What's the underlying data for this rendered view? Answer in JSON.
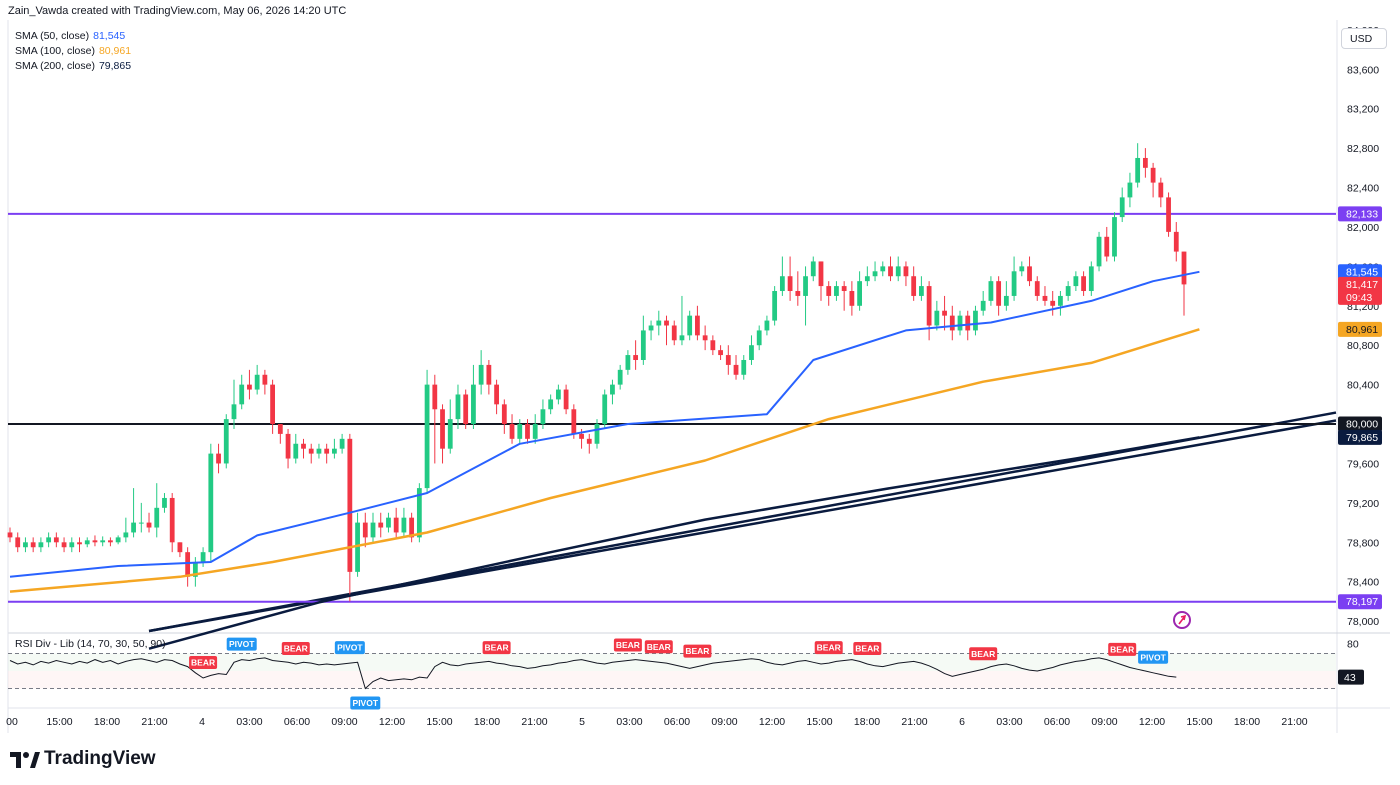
{
  "header": {
    "created": "Zain_Vawda created with TradingView.com, May 06, 2026 14:20 UTC"
  },
  "legend": [
    {
      "label": "SMA (50, close)",
      "value": "81,545",
      "color": "#2962ff"
    },
    {
      "label": "SMA (100, close)",
      "value": "80,961",
      "color": "#f5a623"
    },
    {
      "label": "SMA (200, close)",
      "value": "79,865",
      "color": "#0a1b3f"
    }
  ],
  "currency": "USD",
  "rsi_title": "RSI Div - Lib (14, 70, 30, 50, 90)",
  "rsi_value": "43",
  "rsi_levels": [
    "80"
  ],
  "logo": "TradingView",
  "colors": {
    "up": "#089981",
    "up_body": "#22ca84",
    "down": "#f23645",
    "sma50": "#2962ff",
    "sma100": "#f5a623",
    "sma200": "#0a1b3f",
    "level_line": "#7b3ff2",
    "bear": "#f23645",
    "pivot": "#2196f3"
  },
  "chart_data": {
    "type": "candlestick",
    "ylim": [
      77900,
      84100
    ],
    "y_ticks": [
      "78,000",
      "78,400",
      "78,800",
      "79,200",
      "79,600",
      "80,000",
      "80,400",
      "80,800",
      "81,200",
      "81,600",
      "82,000",
      "82,400",
      "82,800",
      "83,200",
      "83,600",
      "84,000"
    ],
    "y_tick_values": [
      78000,
      78400,
      78800,
      79200,
      79600,
      80000,
      80400,
      80800,
      81200,
      81600,
      82000,
      82400,
      82800,
      83200,
      83600,
      84000
    ],
    "x_ticks": [
      "00",
      "15:00",
      "18:00",
      "21:00",
      "4",
      "03:00",
      "06:00",
      "09:00",
      "12:00",
      "15:00",
      "18:00",
      "21:00",
      "5",
      "03:00",
      "06:00",
      "09:00",
      "12:00",
      "15:00",
      "18:00",
      "21:00",
      "6",
      "03:00",
      "06:00",
      "09:00",
      "12:00",
      "15:00",
      "18:00",
      "21:00"
    ],
    "price_tags": [
      {
        "label": "82,133",
        "value": 82133,
        "bg": "#7b3ff2",
        "fg": "#ffffff"
      },
      {
        "label": "81,545",
        "value": 81545,
        "bg": "#2962ff",
        "fg": "#ffffff"
      },
      {
        "label": "81,417",
        "sub": "09:43",
        "value": 81417,
        "bg": "#f23645",
        "fg": "#ffffff"
      },
      {
        "label": "80,961",
        "value": 80961,
        "bg": "#f5a623",
        "fg": "#131722"
      },
      {
        "label": "80,000",
        "value": 80000,
        "bg": "#131722",
        "fg": "#ffffff"
      },
      {
        "label": "79,865",
        "value": 79865,
        "bg": "#0a1b3f",
        "fg": "#ffffff"
      },
      {
        "label": "78,197",
        "value": 78197,
        "bg": "#7b3ff2",
        "fg": "#ffffff"
      }
    ],
    "horizontal_levels": [
      {
        "value": 82133,
        "color": "#7b3ff2"
      },
      {
        "value": 80000,
        "color": "#131722"
      },
      {
        "value": 78197,
        "color": "#7b3ff2"
      }
    ],
    "trendlines": [
      {
        "from": [
          18,
          77700
        ],
        "to": [
          166,
          79950
        ],
        "color": "#0a1b3f"
      },
      {
        "from": [
          18,
          77780
        ],
        "to": [
          166,
          80030
        ],
        "color": "#0a1b3f"
      }
    ],
    "candles": [
      [
        78900,
        78850,
        78800,
        78950
      ],
      [
        78850,
        78750,
        78700,
        78900
      ],
      [
        78750,
        78800,
        78700,
        78850
      ],
      [
        78800,
        78750,
        78700,
        78850
      ],
      [
        78750,
        78800,
        78700,
        78850
      ],
      [
        78800,
        78850,
        78750,
        78900
      ],
      [
        78850,
        78800,
        78750,
        78900
      ],
      [
        78800,
        78750,
        78700,
        78850
      ],
      [
        78750,
        78800,
        78700,
        78850
      ],
      [
        78800,
        78780,
        78700,
        78850
      ],
      [
        78780,
        78820,
        78750,
        78850
      ],
      [
        78820,
        78800,
        78760,
        78870
      ],
      [
        78800,
        78820,
        78760,
        78860
      ],
      [
        78820,
        78800,
        78760,
        78850
      ],
      [
        78800,
        78850,
        78780,
        78870
      ],
      [
        78850,
        78900,
        78800,
        79050
      ],
      [
        78900,
        79000,
        78850,
        79350
      ],
      [
        79000,
        79000,
        78900,
        79200
      ],
      [
        79000,
        78950,
        78900,
        79100
      ],
      [
        78950,
        79150,
        78850,
        79400
      ],
      [
        79150,
        79250,
        79100,
        79300
      ],
      [
        79250,
        78800,
        78700,
        79300
      ],
      [
        78800,
        78700,
        78650,
        78800
      ],
      [
        78700,
        78450,
        78350,
        78750
      ],
      [
        78450,
        78600,
        78350,
        78650
      ],
      [
        78600,
        78700,
        78550,
        78750
      ],
      [
        78700,
        79700,
        78600,
        79800
      ],
      [
        79700,
        79600,
        79500,
        79800
      ],
      [
        79600,
        80050,
        79550,
        80100
      ],
      [
        80050,
        80200,
        79950,
        80450
      ],
      [
        80200,
        80400,
        80150,
        80500
      ],
      [
        80400,
        80350,
        80250,
        80550
      ],
      [
        80350,
        80500,
        80300,
        80600
      ],
      [
        80500,
        80400,
        80300,
        80550
      ],
      [
        80400,
        80000,
        79900,
        80450
      ],
      [
        80000,
        79900,
        79800,
        80000
      ],
      [
        79900,
        79650,
        79550,
        79950
      ],
      [
        79650,
        79800,
        79600,
        79900
      ],
      [
        79800,
        79750,
        79650,
        79850
      ],
      [
        79750,
        79700,
        79600,
        79800
      ],
      [
        79700,
        79750,
        79650,
        79800
      ],
      [
        79750,
        79700,
        79600,
        79800
      ],
      [
        79700,
        79750,
        79650,
        79850
      ],
      [
        79750,
        79850,
        79700,
        79900
      ],
      [
        79850,
        78500,
        78200,
        79900
      ],
      [
        78500,
        79000,
        78450,
        79100
      ],
      [
        79000,
        78850,
        78750,
        79100
      ],
      [
        78850,
        79000,
        78800,
        79100
      ],
      [
        79000,
        78950,
        78850,
        79100
      ],
      [
        78950,
        79050,
        78900,
        79100
      ],
      [
        79050,
        78900,
        78850,
        79150
      ],
      [
        78900,
        79050,
        78850,
        79150
      ],
      [
        79050,
        78850,
        78800,
        79100
      ],
      [
        78850,
        79350,
        78800,
        79400
      ],
      [
        79350,
        80400,
        79300,
        80550
      ],
      [
        80400,
        80150,
        79600,
        80500
      ],
      [
        80150,
        79750,
        79600,
        80200
      ],
      [
        79750,
        80050,
        79700,
        80250
      ],
      [
        80050,
        80300,
        79950,
        80400
      ],
      [
        80300,
        80000,
        79950,
        80350
      ],
      [
        80000,
        80400,
        79950,
        80600
      ],
      [
        80400,
        80600,
        80300,
        80750
      ],
      [
        80600,
        80400,
        80300,
        80650
      ],
      [
        80400,
        80200,
        80100,
        80450
      ],
      [
        80200,
        80000,
        79900,
        80250
      ],
      [
        80000,
        79850,
        79800,
        80100
      ],
      [
        79850,
        80000,
        79800,
        80050
      ],
      [
        80000,
        79850,
        79800,
        80050
      ],
      [
        79850,
        80000,
        79800,
        80100
      ],
      [
        80000,
        80150,
        79950,
        80250
      ],
      [
        80150,
        80250,
        80100,
        80300
      ],
      [
        80250,
        80350,
        80200,
        80400
      ],
      [
        80350,
        80150,
        80100,
        80400
      ],
      [
        80150,
        79900,
        79850,
        80200
      ],
      [
        79900,
        79850,
        79750,
        79950
      ],
      [
        79850,
        79800,
        79700,
        79900
      ],
      [
        79800,
        80000,
        79750,
        80050
      ],
      [
        80000,
        80300,
        79950,
        80350
      ],
      [
        80300,
        80400,
        80200,
        80450
      ],
      [
        80400,
        80550,
        80350,
        80600
      ],
      [
        80550,
        80700,
        80500,
        80750
      ],
      [
        80700,
        80650,
        80550,
        80850
      ],
      [
        80650,
        80950,
        80600,
        81100
      ],
      [
        80950,
        81000,
        80850,
        81050
      ],
      [
        81000,
        81050,
        80900,
        81150
      ],
      [
        81050,
        81000,
        80800,
        81100
      ],
      [
        81000,
        80850,
        80800,
        81050
      ],
      [
        80850,
        80900,
        80800,
        81300
      ],
      [
        80900,
        81100,
        80850,
        81150
      ],
      [
        81100,
        80900,
        80850,
        81200
      ],
      [
        80900,
        80850,
        80750,
        81000
      ],
      [
        80850,
        80750,
        80700,
        80900
      ],
      [
        80750,
        80700,
        80650,
        80800
      ],
      [
        80700,
        80600,
        80500,
        80800
      ],
      [
        80600,
        80500,
        80450,
        80700
      ],
      [
        80500,
        80650,
        80450,
        80700
      ],
      [
        80650,
        80800,
        80600,
        80900
      ],
      [
        80800,
        80950,
        80750,
        81000
      ],
      [
        80950,
        81050,
        80900,
        81100
      ],
      [
        81050,
        81350,
        81000,
        81400
      ],
      [
        81350,
        81500,
        81300,
        81700
      ],
      [
        81500,
        81350,
        81250,
        81700
      ],
      [
        81350,
        81300,
        81200,
        81550
      ],
      [
        81300,
        81500,
        81000,
        81600
      ],
      [
        81500,
        81650,
        81450,
        81700
      ],
      [
        81650,
        81400,
        81250,
        81650
      ],
      [
        81400,
        81300,
        81200,
        81450
      ],
      [
        81300,
        81400,
        81250,
        81450
      ],
      [
        81400,
        81350,
        81150,
        81450
      ],
      [
        81350,
        81200,
        81100,
        81450
      ],
      [
        81200,
        81450,
        81150,
        81550
      ],
      [
        81450,
        81500,
        81400,
        81600
      ],
      [
        81500,
        81550,
        81450,
        81650
      ],
      [
        81550,
        81600,
        81500,
        81650
      ],
      [
        81600,
        81500,
        81450,
        81700
      ],
      [
        81500,
        81600,
        81450,
        81700
      ],
      [
        81600,
        81500,
        81400,
        81650
      ],
      [
        81500,
        81300,
        81250,
        81600
      ],
      [
        81300,
        81400,
        81250,
        81500
      ],
      [
        81400,
        81000,
        80850,
        81450
      ],
      [
        81000,
        81150,
        80950,
        81250
      ],
      [
        81150,
        81100,
        80950,
        81300
      ],
      [
        81100,
        80950,
        80850,
        81200
      ],
      [
        80950,
        81100,
        80900,
        81150
      ],
      [
        81100,
        80950,
        80850,
        81150
      ],
      [
        80950,
        81150,
        80900,
        81200
      ],
      [
        81150,
        81250,
        81100,
        81350
      ],
      [
        81250,
        81450,
        81200,
        81500
      ],
      [
        81450,
        81200,
        81100,
        81500
      ],
      [
        81200,
        81300,
        81150,
        81450
      ],
      [
        81300,
        81550,
        81250,
        81700
      ],
      [
        81550,
        81600,
        81500,
        81650
      ],
      [
        81600,
        81450,
        81400,
        81700
      ],
      [
        81450,
        81300,
        81250,
        81500
      ],
      [
        81300,
        81250,
        81200,
        81400
      ],
      [
        81250,
        81200,
        81100,
        81350
      ],
      [
        81200,
        81300,
        81100,
        81350
      ],
      [
        81300,
        81400,
        81250,
        81450
      ],
      [
        81400,
        81500,
        81350,
        81550
      ],
      [
        81500,
        81350,
        81300,
        81550
      ],
      [
        81350,
        81600,
        81300,
        81650
      ],
      [
        81600,
        81900,
        81550,
        81950
      ],
      [
        81900,
        81700,
        81650,
        82000
      ],
      [
        81700,
        82100,
        81650,
        82150
      ],
      [
        82100,
        82300,
        82050,
        82400
      ],
      [
        82300,
        82450,
        82200,
        82550
      ],
      [
        82450,
        82700,
        82400,
        82850
      ],
      [
        82700,
        82600,
        82500,
        82800
      ],
      [
        82600,
        82450,
        82300,
        82650
      ],
      [
        82450,
        82300,
        82200,
        82500
      ],
      [
        82300,
        81950,
        81900,
        82350
      ],
      [
        81950,
        81750,
        81650,
        82050
      ],
      [
        81750,
        81417,
        81100,
        81750
      ]
    ],
    "sma50": [
      [
        0,
        78450
      ],
      [
        14,
        78560
      ],
      [
        26,
        78600
      ],
      [
        32,
        78870
      ],
      [
        44,
        79100
      ],
      [
        54,
        79300
      ],
      [
        66,
        79800
      ],
      [
        80,
        80000
      ],
      [
        98,
        80100
      ],
      [
        104,
        80650
      ],
      [
        116,
        80950
      ],
      [
        127,
        81030
      ],
      [
        140,
        81250
      ],
      [
        148,
        81450
      ],
      [
        154,
        81545
      ]
    ],
    "sma100": [
      [
        0,
        78300
      ],
      [
        22,
        78450
      ],
      [
        34,
        78600
      ],
      [
        54,
        78900
      ],
      [
        70,
        79250
      ],
      [
        90,
        79630
      ],
      [
        106,
        80050
      ],
      [
        126,
        80430
      ],
      [
        140,
        80620
      ],
      [
        154,
        80961
      ]
    ],
    "sma200": [
      [
        18,
        77720
      ],
      [
        40,
        78190
      ],
      [
        70,
        78700
      ],
      [
        90,
        79030
      ],
      [
        114,
        79350
      ],
      [
        138,
        79650
      ],
      [
        154,
        79865
      ]
    ],
    "rsi": [
      62,
      58,
      60,
      57,
      61,
      59,
      62,
      60,
      58,
      61,
      59,
      63,
      60,
      62,
      58,
      61,
      63,
      64,
      62,
      60,
      63,
      62,
      58,
      55,
      48,
      42,
      45,
      47,
      46,
      60,
      63,
      62,
      64,
      65,
      62,
      61,
      60,
      58,
      60,
      59,
      57,
      58,
      57,
      58,
      59,
      60,
      30,
      38,
      42,
      39,
      40,
      41,
      40,
      43,
      42,
      55,
      60,
      57,
      56,
      58,
      59,
      60,
      61,
      59,
      58,
      56,
      55,
      53,
      54,
      56,
      57,
      59,
      60,
      62,
      63,
      61,
      59,
      58,
      60,
      61,
      62,
      63,
      62,
      61,
      60,
      59,
      57,
      55,
      53,
      55,
      57,
      59,
      60,
      61,
      62,
      63,
      64,
      63,
      60,
      58,
      57,
      59,
      61,
      62,
      60,
      58,
      59,
      61,
      62,
      63,
      61,
      58,
      56,
      55,
      57,
      59,
      60,
      61,
      59,
      56,
      52,
      47,
      44,
      46,
      48,
      50,
      52,
      55,
      57,
      58,
      56,
      53,
      51,
      50,
      52,
      54,
      57,
      59,
      61,
      62,
      64,
      65,
      63,
      60,
      57,
      54,
      52,
      50,
      48,
      46,
      44,
      43
    ],
    "signals": [
      {
        "type": "BEAR",
        "index": 25
      },
      {
        "type": "PIVOT",
        "index": 30
      },
      {
        "type": "BEAR",
        "index": 37
      },
      {
        "type": "PIVOT",
        "index": 44
      },
      {
        "type": "PIVOT",
        "index": 46
      },
      {
        "type": "BEAR",
        "index": 63
      },
      {
        "type": "BEAR",
        "index": 80
      },
      {
        "type": "BEAR",
        "index": 84
      },
      {
        "type": "BEAR",
        "index": 89
      },
      {
        "type": "BEAR",
        "index": 106
      },
      {
        "type": "BEAR",
        "index": 111
      },
      {
        "type": "BEAR",
        "index": 126
      },
      {
        "type": "BEAR",
        "index": 144
      },
      {
        "type": "PIVOT",
        "index": 148
      }
    ]
  }
}
